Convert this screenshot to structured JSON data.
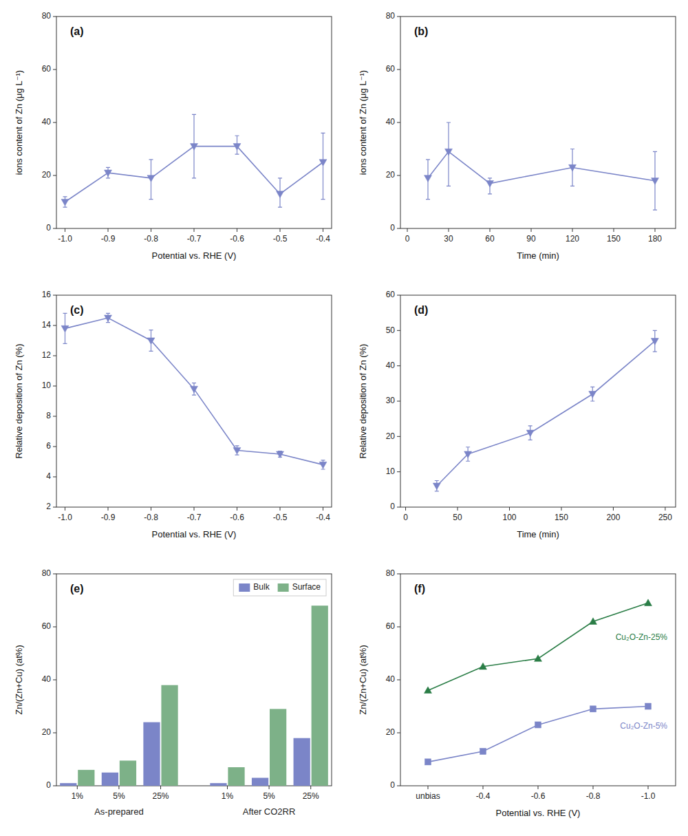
{
  "chart_data": [
    {
      "type": "line",
      "annotation": "(a)",
      "xlabel": "Potential vs. RHE (V)",
      "ylabel": "ions content of Zn (μg L⁻¹)",
      "x": [
        -0.4,
        -0.5,
        -0.6,
        -0.7,
        -0.8,
        -0.9,
        -1.0
      ],
      "values": [
        25,
        13,
        31,
        31,
        19,
        21,
        10
      ],
      "error_low": [
        14,
        5,
        3,
        12,
        8,
        2,
        2
      ],
      "error_high": [
        11,
        6,
        4,
        12,
        7,
        2,
        2
      ],
      "color": "#7b85c8",
      "marker": "triangle-down",
      "xlim": [
        -1.02,
        -0.38
      ],
      "xticks": [
        -0.4,
        -0.5,
        -0.6,
        -0.7,
        -0.8,
        -0.9,
        {
          "value": -1,
          "label": "-1.0"
        }
      ],
      "ylim": [
        0,
        80
      ],
      "yticks": [
        0,
        20,
        40,
        60,
        80
      ],
      "grid": false
    },
    {
      "type": "line",
      "annotation": "(b)",
      "xlabel": "Time (min)",
      "ylabel": "ions content of Zn (μg L⁻¹)",
      "x": [
        15,
        30,
        60,
        120,
        180
      ],
      "values": [
        19,
        29,
        17,
        23,
        18
      ],
      "error_low": [
        8,
        13,
        4,
        7,
        11
      ],
      "error_high": [
        7,
        11,
        2,
        7,
        11
      ],
      "color": "#7b85c8",
      "marker": "triangle-down",
      "xlim": [
        -5,
        195
      ],
      "xticks": [
        0,
        30,
        60,
        90,
        120,
        150,
        180
      ],
      "ylim": [
        0,
        80
      ],
      "yticks": [
        0,
        20,
        40,
        60,
        80
      ],
      "grid": false
    },
    {
      "type": "line",
      "annotation": "(c)",
      "xlabel": "Potential vs. RHE (V)",
      "ylabel": "Relative deposition of Zn (%)",
      "x": [
        -0.4,
        -0.5,
        -0.6,
        -0.7,
        -0.8,
        -0.9,
        -1.0
      ],
      "values": [
        4.8,
        5.5,
        5.75,
        9.8,
        13.0,
        14.5,
        13.8
      ],
      "error_low": [
        0.3,
        0.2,
        0.3,
        0.4,
        0.7,
        0.3,
        1.0
      ],
      "error_high": [
        0.3,
        0.2,
        0.3,
        0.4,
        0.7,
        0.3,
        1.0
      ],
      "color": "#7b85c8",
      "marker": "triangle-down",
      "xlim": [
        -1.02,
        -0.38
      ],
      "xticks": [
        -0.4,
        -0.5,
        -0.6,
        -0.7,
        -0.8,
        -0.9,
        {
          "value": -1,
          "label": "-1.0"
        }
      ],
      "ylim": [
        2,
        16
      ],
      "yticks": [
        2,
        4,
        6,
        8,
        10,
        12,
        14,
        16
      ],
      "grid": false
    },
    {
      "type": "line",
      "annotation": "(d)",
      "xlabel": "Time (min)",
      "ylabel": "Relative deposition of Zn (%)",
      "x": [
        30,
        60,
        120,
        180,
        240
      ],
      "values": [
        6,
        15,
        21,
        32,
        47
      ],
      "error_low": [
        1.5,
        2,
        2,
        2,
        3
      ],
      "error_high": [
        1.5,
        2,
        2,
        2,
        3
      ],
      "color": "#7b85c8",
      "marker": "triangle-down",
      "xlim": [
        -5,
        260
      ],
      "xticks": [
        0,
        50,
        100,
        150,
        200,
        250
      ],
      "ylim": [
        0,
        60
      ],
      "yticks": [
        0,
        10,
        20,
        30,
        40,
        50,
        60
      ],
      "grid": false
    },
    {
      "type": "bar",
      "annotation": "(e)",
      "ylabel": "Zn/(Zn+Cu) (at%)",
      "categories": [
        "1%",
        "5%",
        "25%",
        "1%",
        "5%",
        "25%"
      ],
      "group_labels": [
        "As-prepared",
        "After CO2RR"
      ],
      "series": [
        {
          "name": "Bulk",
          "color": "#7b85c8",
          "values": [
            1,
            5,
            24,
            1,
            3,
            18
          ]
        },
        {
          "name": "Surface",
          "color": "#7db188",
          "values": [
            6,
            9.5,
            38,
            7,
            29,
            68
          ]
        }
      ],
      "ylim": [
        0,
        80
      ],
      "yticks": [
        0,
        20,
        40,
        60,
        80
      ],
      "legend": "upper right",
      "grid": false
    },
    {
      "type": "line",
      "annotation": "(f)",
      "xlabel": "Potential vs. RHE (V)",
      "ylabel": "Zn/(Zn+Cu) (at%)",
      "categories": [
        "unbias",
        "-0.4",
        "-0.6",
        "-0.8",
        "-1.0"
      ],
      "series": [
        {
          "name": "Cu₂O-Zn-25%",
          "color": "#2a7d46",
          "marker": "triangle-up",
          "values": [
            36,
            45,
            48,
            62,
            69
          ]
        },
        {
          "name": "Cu₂O-Zn-5%",
          "color": "#7b85c8",
          "marker": "square",
          "values": [
            9,
            13,
            23,
            29,
            30
          ]
        }
      ],
      "ylim": [
        0,
        80
      ],
      "yticks": [
        0,
        20,
        40,
        60,
        80
      ],
      "grid": false
    }
  ]
}
